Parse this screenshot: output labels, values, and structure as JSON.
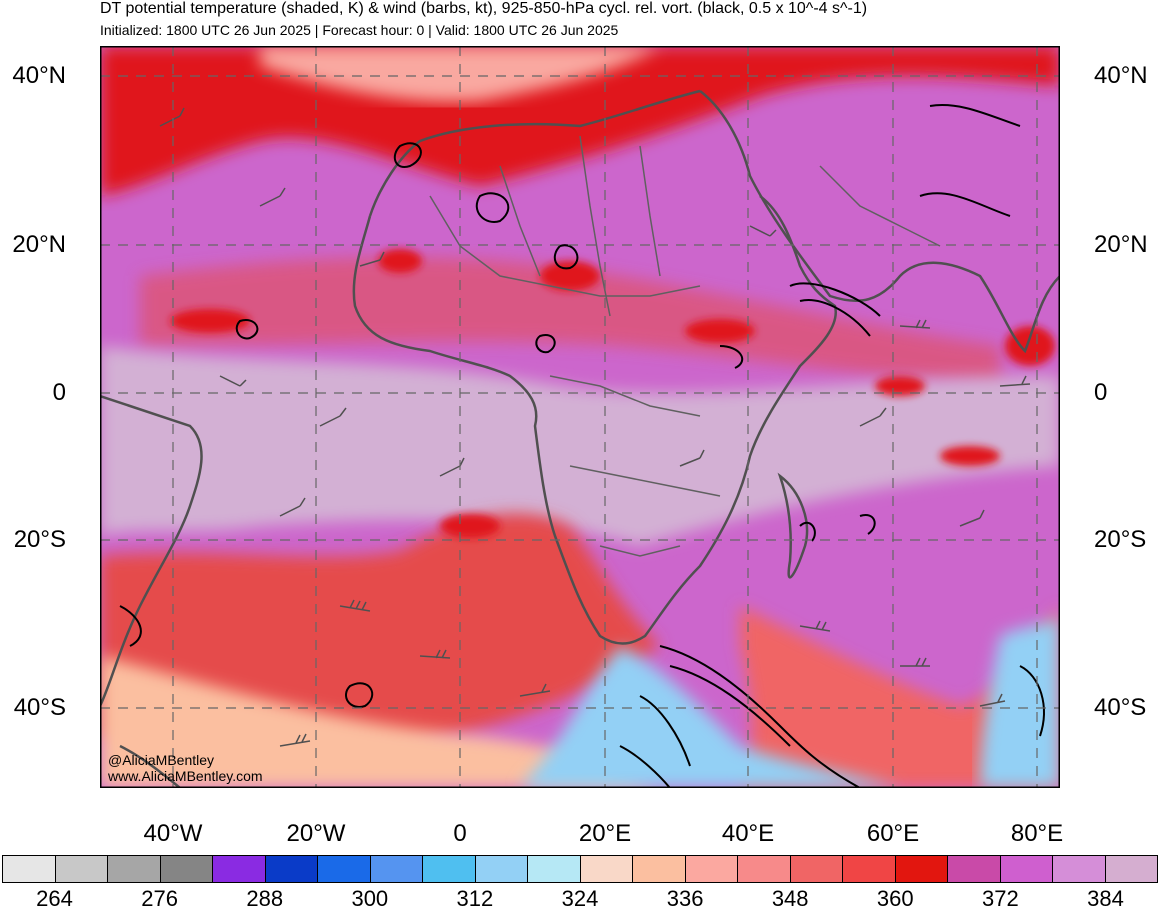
{
  "header": {
    "title": "DT potential temperature (shaded, K) & wind (barbs, kt), 925-850-hPa cycl. rel. vort. (black, 0.5 x 10^-4 s^-1)",
    "subtitle": "Initialized: 1800 UTC 26 Jun 2025 | Forecast hour: 0 | Valid: 1800 UTC 26 Jun 2025"
  },
  "map": {
    "lat_labels": [
      "40°N",
      "20°N",
      "0",
      "20°S",
      "40°S"
    ],
    "lat_values": [
      40,
      20,
      0,
      -20,
      -40
    ],
    "lon_labels": [
      "40°W",
      "20°W",
      "0",
      "20°E",
      "40°E",
      "60°E",
      "80°E"
    ],
    "lon_values": [
      -40,
      -20,
      0,
      20,
      40,
      60,
      80
    ],
    "lat_range": [
      -50,
      44
    ],
    "lon_range": [
      -50,
      83
    ],
    "gridlines": true,
    "credit": {
      "handle": "@AliciaMBentley",
      "site": "www.AliciaMBentley.com"
    }
  },
  "colorbar": {
    "colors": [
      "#e6e6e6",
      "#c8c8c8",
      "#a6a6a6",
      "#858585",
      "#8a2be2",
      "#0a3bc8",
      "#1a6ae8",
      "#5594f0",
      "#4fbff0",
      "#93d0f5",
      "#b6e8f5",
      "#f9d8c8",
      "#fbbfa0",
      "#fba8a0",
      "#f78a8a",
      "#f06565",
      "#f04545",
      "#e2160f",
      "#c94aa8",
      "#cf5fcf",
      "#d58ed8",
      "#d5aed0"
    ],
    "labels": [
      "264",
      "276",
      "288",
      "300",
      "312",
      "324",
      "336",
      "348",
      "360",
      "372",
      "384"
    ]
  },
  "shading_colors": {
    "equatorial": "#d3b0d4",
    "tropics": "#cc66cc",
    "warm": "#e54c4c",
    "hot": "#e0141a",
    "cool": "#fbbfa0",
    "cold": "#93d0f5",
    "coast": "#505050"
  }
}
